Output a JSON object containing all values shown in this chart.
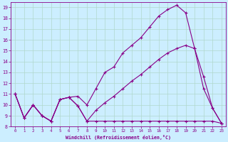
{
  "xlabel": "Windchill (Refroidissement éolien,°C)",
  "bg_color": "#cceeff",
  "grid_color": "#b0d8cc",
  "line_color": "#880088",
  "xlim": [
    -0.5,
    23.5
  ],
  "ylim": [
    8,
    19.5
  ],
  "xticks": [
    0,
    1,
    2,
    3,
    4,
    5,
    6,
    7,
    8,
    9,
    10,
    11,
    12,
    13,
    14,
    15,
    16,
    17,
    18,
    19,
    20,
    21,
    22,
    23
  ],
  "yticks": [
    8,
    9,
    10,
    11,
    12,
    13,
    14,
    15,
    16,
    17,
    18,
    19
  ],
  "line1_x": [
    0,
    1,
    2,
    3,
    4,
    5,
    6,
    7,
    8,
    9,
    10,
    11,
    12,
    13,
    14,
    15,
    16,
    17,
    18,
    19,
    20,
    21,
    22,
    23
  ],
  "line1_y": [
    11.0,
    8.8,
    10.0,
    9.0,
    8.5,
    10.5,
    10.7,
    10.8,
    10.0,
    11.5,
    13.0,
    13.5,
    14.8,
    15.5,
    16.2,
    17.2,
    18.2,
    18.8,
    19.2,
    18.5,
    15.2,
    11.5,
    9.7,
    8.3
  ],
  "line2_x": [
    0,
    1,
    2,
    3,
    4,
    5,
    6,
    7,
    8,
    9,
    10,
    11,
    12,
    13,
    14,
    15,
    16,
    17,
    18,
    19,
    20,
    21,
    22,
    23
  ],
  "line2_y": [
    11.0,
    8.8,
    10.0,
    9.0,
    8.5,
    10.5,
    10.7,
    9.9,
    8.5,
    9.5,
    10.2,
    10.8,
    11.5,
    12.2,
    12.8,
    13.5,
    14.2,
    14.8,
    15.2,
    15.5,
    15.2,
    12.6,
    9.7,
    8.3
  ],
  "line3_x": [
    0,
    1,
    2,
    3,
    4,
    5,
    6,
    7,
    8,
    9,
    10,
    11,
    12,
    13,
    14,
    15,
    16,
    17,
    18,
    19,
    20,
    21,
    22,
    23
  ],
  "line3_y": [
    11.0,
    8.8,
    10.0,
    9.0,
    8.5,
    10.5,
    10.7,
    9.9,
    8.5,
    8.5,
    8.5,
    8.5,
    8.5,
    8.5,
    8.5,
    8.5,
    8.5,
    8.5,
    8.5,
    8.5,
    8.5,
    8.5,
    8.5,
    8.3
  ]
}
